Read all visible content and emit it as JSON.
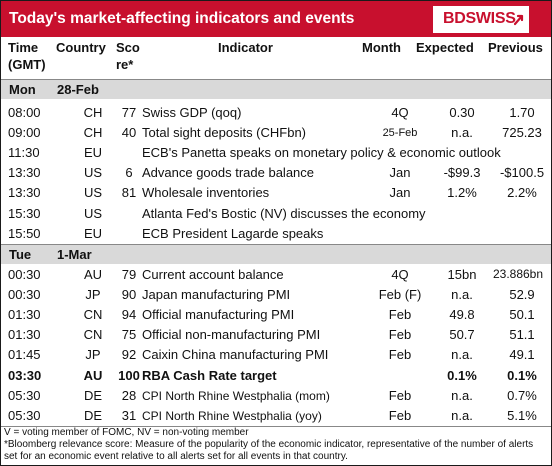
{
  "header": {
    "title": "Today's market-affecting indicators and events",
    "logo_text": "BDSWISS"
  },
  "columns": {
    "time": "Time",
    "time_sub": "(GMT)",
    "country": "Country",
    "score": "Sco",
    "score_sub": "re*",
    "indicator": "Indicator",
    "month": "Month",
    "expected": "Expected",
    "previous": "Previous"
  },
  "days": [
    {
      "day": "Mon",
      "date": "28-Feb",
      "rows": [
        {
          "time": "08:00",
          "country": "CH",
          "score": "77",
          "indicator": "Swiss GDP (qoq)",
          "month": "4Q",
          "expected": "0.30",
          "previous": "1.70"
        },
        {
          "time": "09:00",
          "country": "CH",
          "score": "40",
          "indicator": "Total sight deposits (CHFbn)",
          "month": "25-Feb",
          "expected": "n.a.",
          "previous": "725.23"
        },
        {
          "time": "11:30",
          "country": "EU",
          "score": "",
          "indicator": "ECB's Panetta speaks on monetary policy & economic outlook",
          "month": "",
          "expected": "",
          "previous": ""
        },
        {
          "time": "13:30",
          "country": "US",
          "score": "6",
          "indicator": "Advance goods trade balance",
          "month": "Jan",
          "expected": "-$99.3",
          "previous": "-$100.5"
        },
        {
          "time": "13:30",
          "country": "US",
          "score": "81",
          "indicator": "Wholesale inventories",
          "month": "Jan",
          "expected": "1.2%",
          "previous": "2.2%"
        },
        {
          "time": "15:30",
          "country": "US",
          "score": "",
          "indicator": "Atlanta Fed's Bostic (NV) discusses the economy",
          "month": "",
          "expected": "",
          "previous": ""
        },
        {
          "time": "15:50",
          "country": "EU",
          "score": "",
          "indicator": "ECB President Lagarde speaks",
          "month": "",
          "expected": "",
          "previous": ""
        }
      ]
    },
    {
      "day": "Tue",
      "date": "1-Mar",
      "rows": [
        {
          "time": "00:30",
          "country": "AU",
          "score": "79",
          "indicator": "Current account balance",
          "month": "4Q",
          "expected": "15bn",
          "previous": "23.886bn"
        },
        {
          "time": "00:30",
          "country": "JP",
          "score": "90",
          "indicator": "Japan manufacturing PMI",
          "month": "Feb (F)",
          "expected": "n.a.",
          "previous": "52.9"
        },
        {
          "time": "01:30",
          "country": "CN",
          "score": "94",
          "indicator": "Official manufacturing PMI",
          "month": "Feb",
          "expected": "49.8",
          "previous": "50.1"
        },
        {
          "time": "01:30",
          "country": "CN",
          "score": "75",
          "indicator": "Official non-manufacturing PMI",
          "month": "Feb",
          "expected": "50.7",
          "previous": "51.1"
        },
        {
          "time": "01:45",
          "country": "JP",
          "score": "92",
          "indicator": "Caixin China manufacturing PMI",
          "month": "Feb",
          "expected": "n.a.",
          "previous": "49.1"
        },
        {
          "time": "03:30",
          "country": "AU",
          "score": "100",
          "indicator": "RBA Cash Rate target",
          "month": "",
          "expected": "0.1%",
          "previous": "0.1%"
        },
        {
          "time": "05:30",
          "country": "DE",
          "score": "28",
          "indicator": "CPI North Rhine Westphalia (mom)",
          "month": "Feb",
          "expected": "n.a.",
          "previous": "0.7%"
        },
        {
          "time": "05:30",
          "country": "DE",
          "score": "31",
          "indicator": "CPI North Rhine Westphalia (yoy)",
          "month": "Feb",
          "expected": "n.a.",
          "previous": "5.1%"
        }
      ]
    }
  ],
  "footnotes": {
    "line1": "V = voting member of FOMC, NV = non-voting member",
    "line2": "*Bloomberg relevance score:  Measure of the popularity of the economic indicator, representative of the number of alerts set for an economic event relative to all alerts set for all events in that country."
  },
  "colors": {
    "brand": "#c8102e",
    "day_band": "#d9d9d9"
  }
}
